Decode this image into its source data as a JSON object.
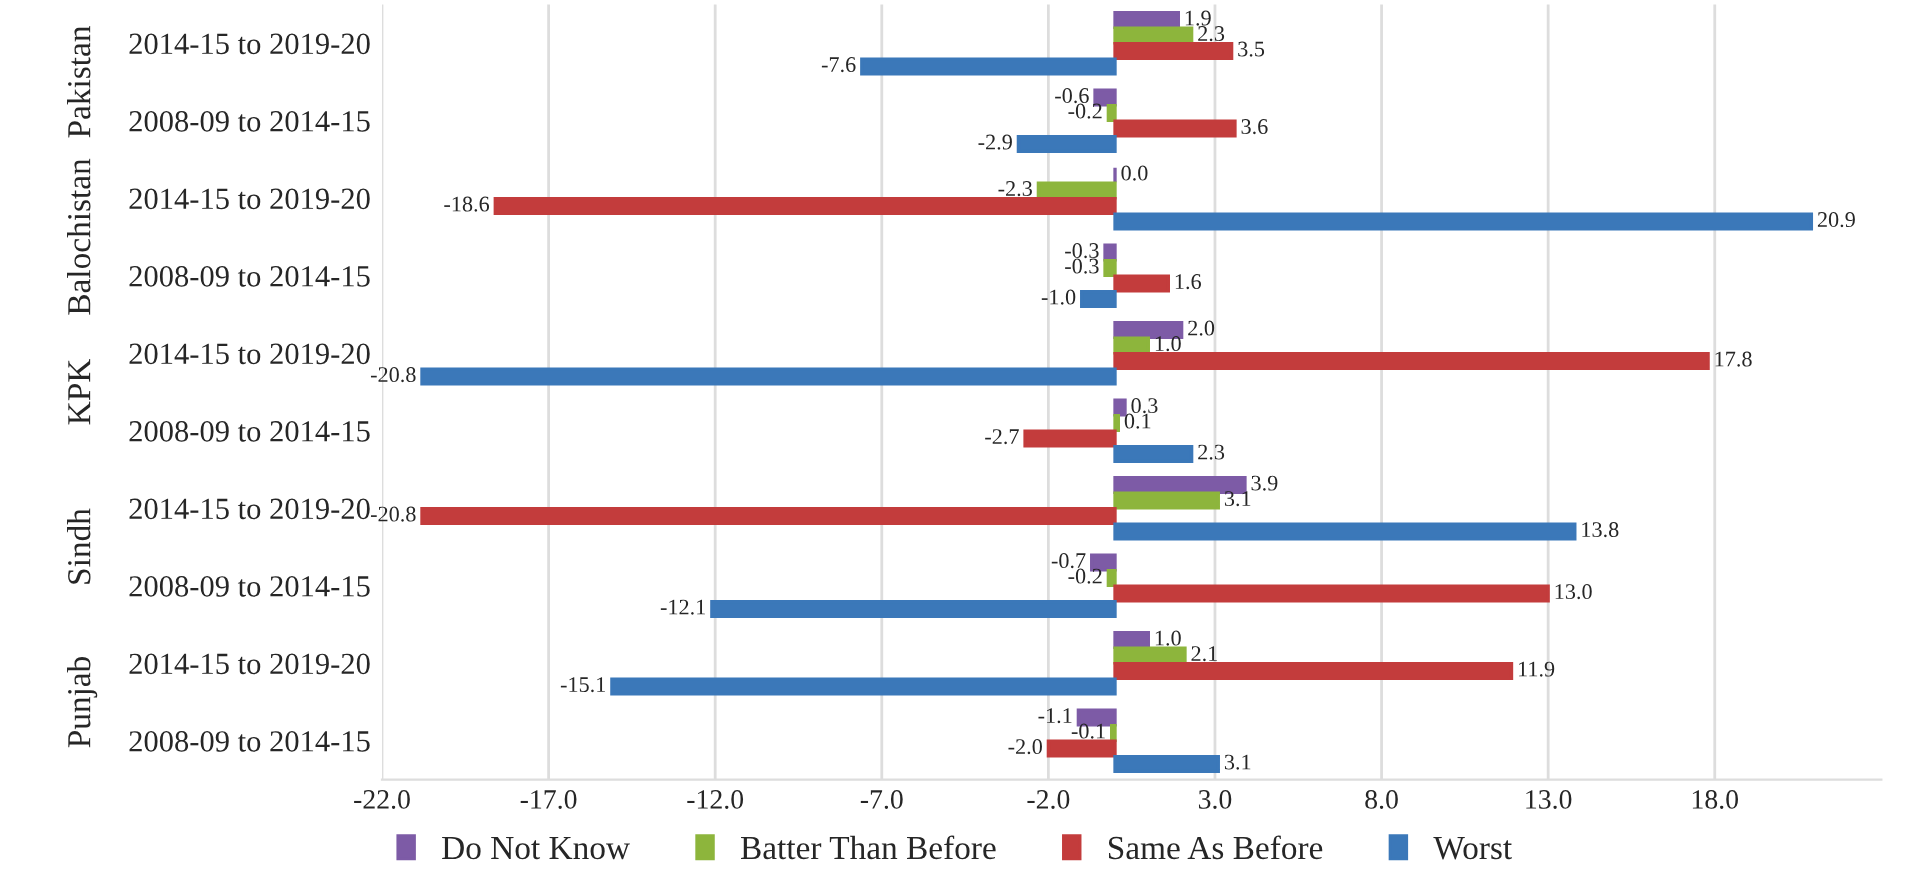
{
  "chart_data": {
    "type": "bar",
    "orientation": "horizontal",
    "categories": [
      "2014-15 to 2019-20",
      "2008-09 to 2014-15",
      "2014-15 to 2019-20",
      "2008-09 to 2014-15",
      "2014-15 to 2019-20",
      "2008-09 to 2014-15",
      "2014-15 to 2019-20",
      "2008-09 to 2014-15",
      "2014-15 to 2019-20",
      "2008-09 to 2014-15"
    ],
    "series": [
      {
        "name": "Do Not Know",
        "color": "#7d5ba6",
        "values": [
          1.9,
          -0.6,
          0.0,
          -0.3,
          2.0,
          0.3,
          3.9,
          -0.7,
          1.0,
          -1.1
        ],
        "value_labels": [
          "1.9",
          "-0.6",
          "0.0",
          "-0.3",
          "2.0",
          "0.3",
          "3.9",
          "-0.7",
          "1.0",
          "-1.1"
        ]
      },
      {
        "name": "Batter Than Before",
        "color": "#8db53c",
        "values": [
          2.3,
          -0.2,
          -2.3,
          -0.3,
          1.0,
          0.1,
          3.1,
          -0.2,
          2.1,
          -0.1
        ],
        "value_labels": [
          "2.3",
          "-0.2",
          "-2.3",
          "-0.3",
          "1.0",
          "0.1",
          "3.1",
          "-0.2",
          "2.1",
          "-0.1"
        ]
      },
      {
        "name": "Same As Before",
        "color": "#c33c3c",
        "values": [
          3.5,
          3.6,
          -18.6,
          1.6,
          17.8,
          -2.7,
          -20.8,
          13.0,
          11.9,
          -2.0
        ],
        "value_labels": [
          "3.5",
          "3.6",
          "-18.6",
          "1.6",
          "17.8",
          "-2.7",
          "-20.8",
          "13.0",
          "11.9",
          "-2.0"
        ]
      },
      {
        "name": "Worst",
        "color": "#3b78b9",
        "values": [
          -7.6,
          -2.9,
          20.9,
          -1.0,
          -20.8,
          2.3,
          13.8,
          -12.1,
          -15.1,
          3.1
        ],
        "value_labels": [
          "-7.6",
          "-2.9",
          "20.9",
          "-1.0",
          "-20.8",
          "2.3",
          "13.8",
          "-12.1",
          "-15.1",
          "3.1"
        ]
      }
    ],
    "annotations": [
      "Pakistan",
      "Balochistan",
      "KPK",
      "Sindh",
      "Punjab"
    ],
    "xlim": [
      -22,
      23
    ],
    "xticks": [
      {
        "value": -22,
        "label": "-22.0"
      },
      {
        "value": -17,
        "label": "-17.0"
      },
      {
        "value": -12,
        "label": "-12.0"
      },
      {
        "value": -7,
        "label": "-7.0"
      },
      {
        "value": -2,
        "label": "-2.0"
      },
      {
        "value": 3,
        "label": "3.0"
      },
      {
        "value": 8,
        "label": "8.0"
      },
      {
        "value": 13,
        "label": "13.0"
      },
      {
        "value": 18,
        "label": "18.0"
      }
    ],
    "grid": "x",
    "legend": "bottom"
  }
}
